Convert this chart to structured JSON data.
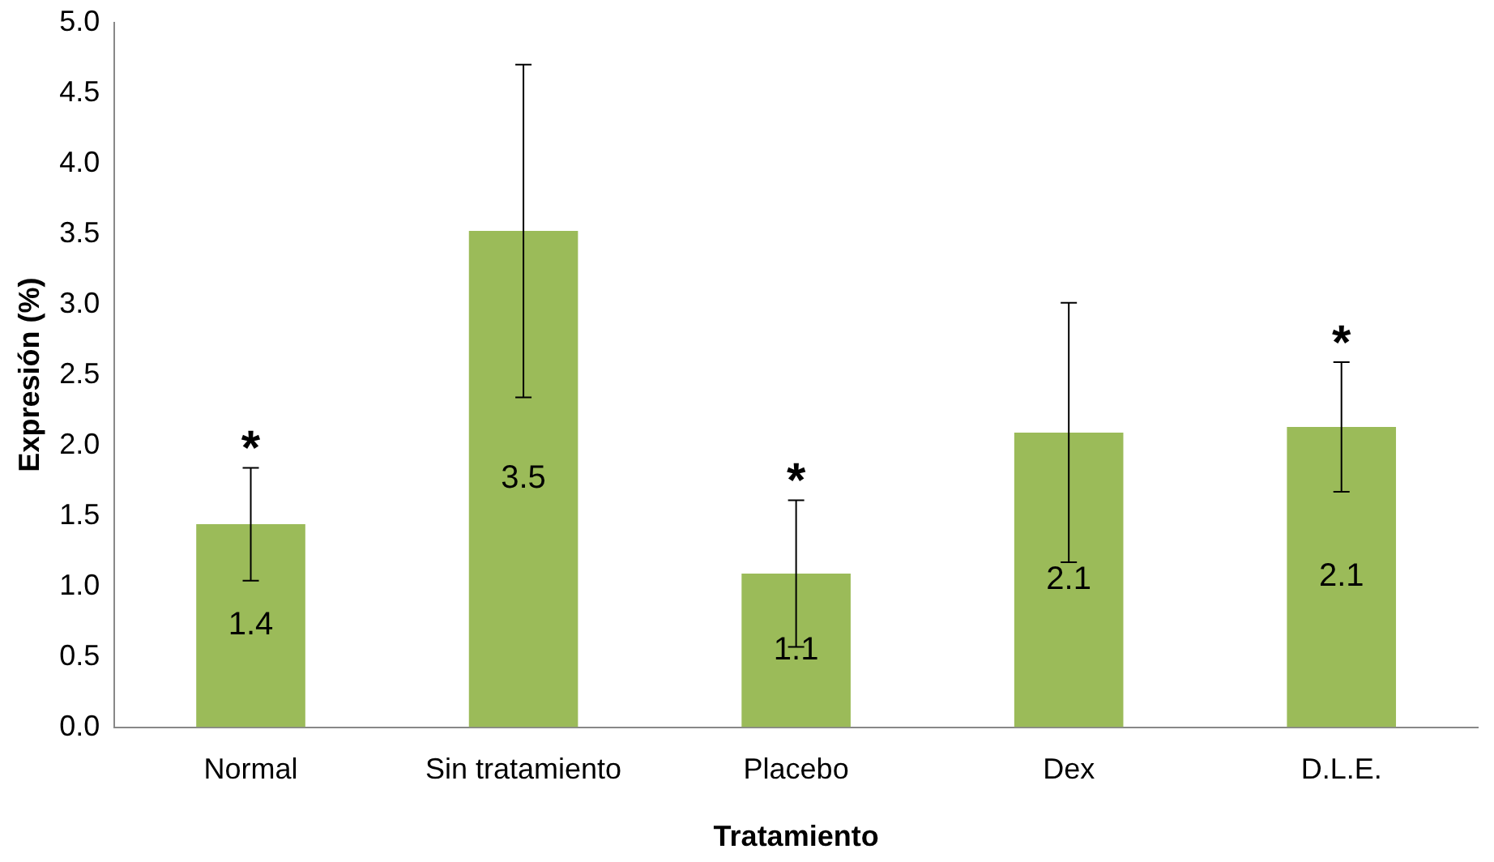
{
  "chart_data": {
    "type": "bar",
    "xlabel": "Tratamiento",
    "ylabel": "Expresión (%)",
    "categories": [
      "Normal",
      "Sin tratamiento",
      "Placebo",
      "Dex",
      "D.L.E."
    ],
    "values": [
      1.44,
      3.52,
      1.09,
      2.09,
      2.13
    ],
    "errors": [
      0.4,
      1.18,
      0.52,
      0.92,
      0.46
    ],
    "value_labels": [
      "1.4",
      "3.5",
      "1.1",
      "2.1",
      "2.1"
    ],
    "color": "#9bbb59",
    "ylim": [
      0,
      5
    ],
    "yticks": [
      {
        "value": 0,
        "label": "0.0"
      },
      {
        "value": 0.5,
        "label": "0.5"
      },
      {
        "value": 1,
        "label": "1.0"
      },
      {
        "value": 1.5,
        "label": "1.5"
      },
      {
        "value": 2,
        "label": "2.0"
      },
      {
        "value": 2.5,
        "label": "2.5"
      },
      {
        "value": 3,
        "label": "3.0"
      },
      {
        "value": 3.5,
        "label": "3.5"
      },
      {
        "value": 4,
        "label": "4.0"
      },
      {
        "value": 4.5,
        "label": "4.5"
      },
      {
        "value": 5,
        "label": "5.0"
      }
    ],
    "grid": false,
    "legend": false,
    "annotations": [
      {
        "text": "*",
        "x": "Normal",
        "y": 1.84
      },
      {
        "text": "*",
        "x": "Placebo",
        "y": 1.61
      },
      {
        "text": "*",
        "x": "D.L.E.",
        "y": 2.59
      }
    ]
  }
}
